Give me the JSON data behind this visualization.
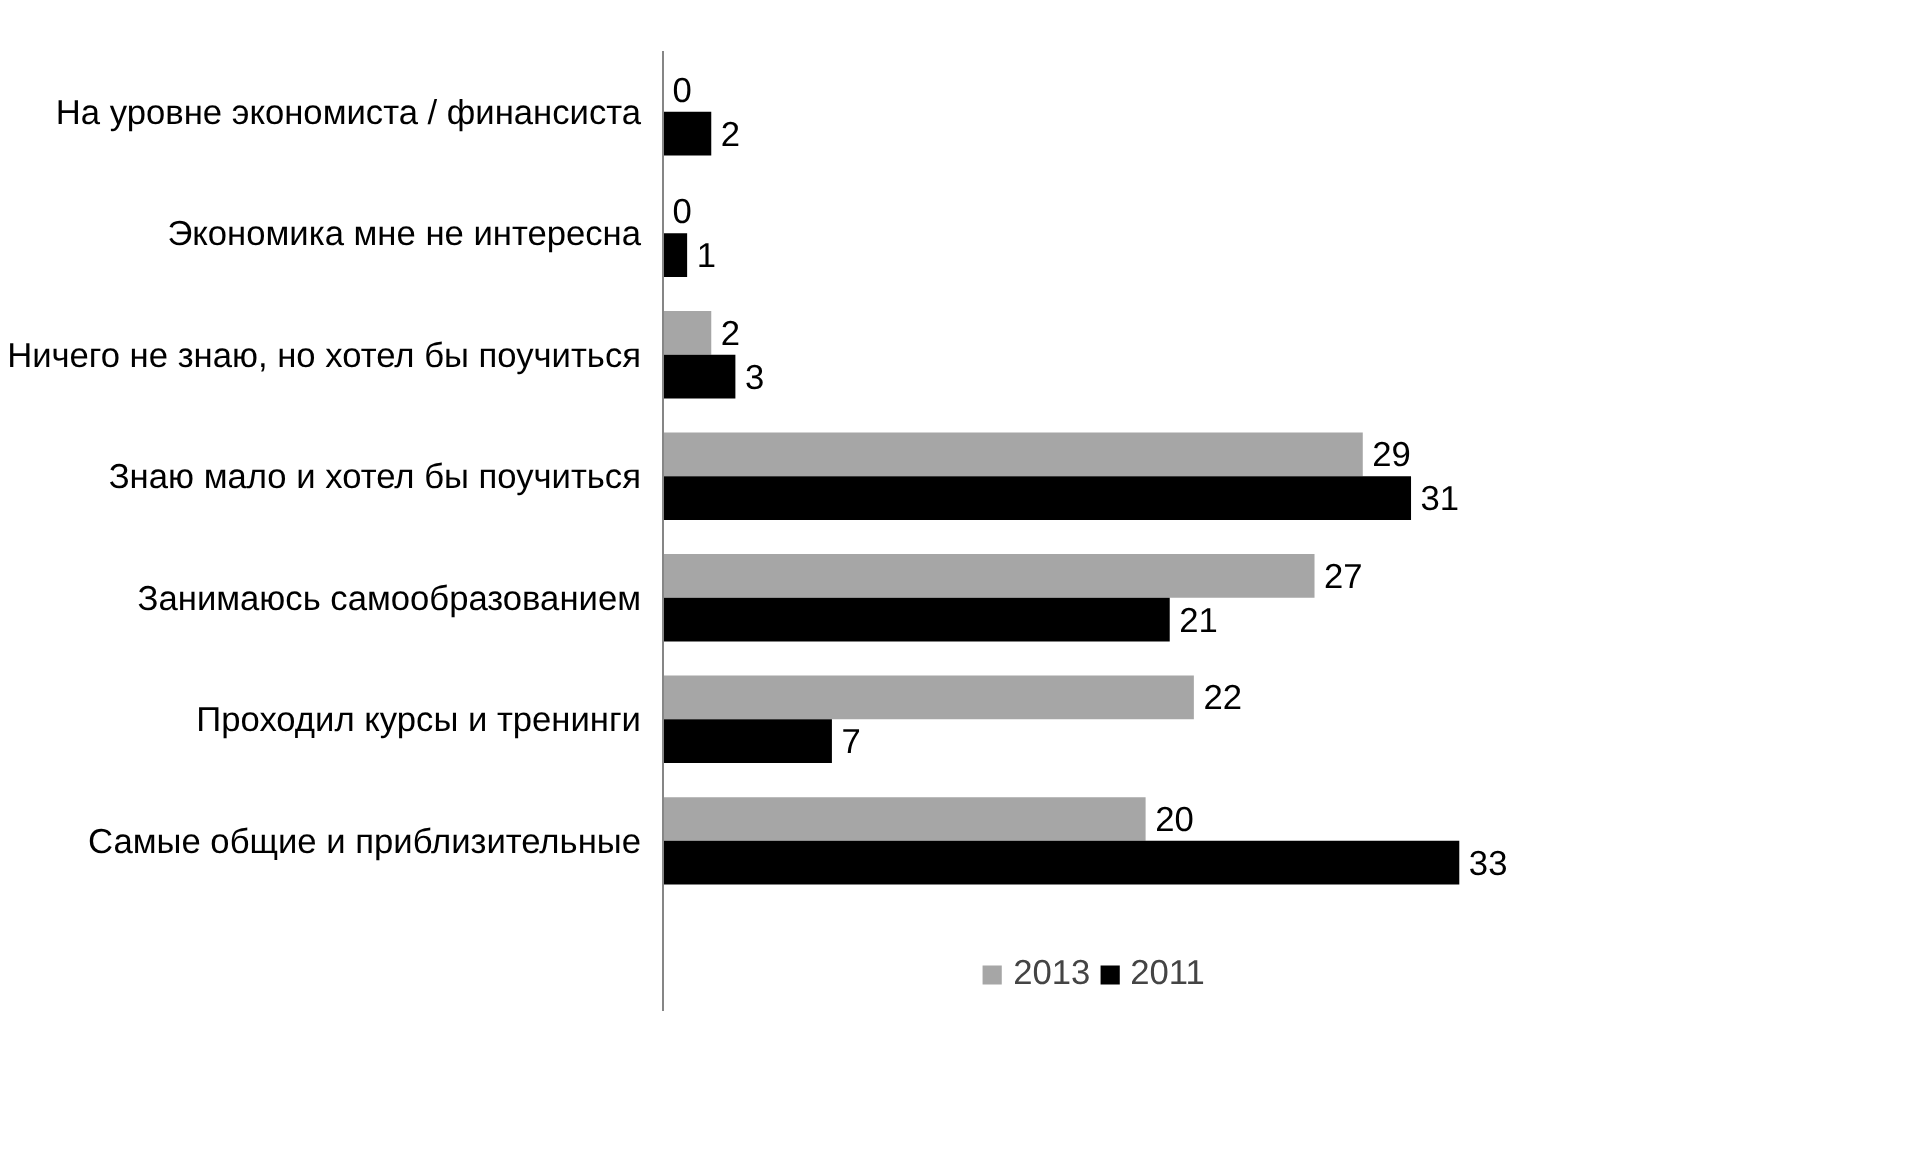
{
  "chart_data": {
    "type": "bar",
    "orientation": "horizontal",
    "categories": [
      "На уровне экономиста / финансиста",
      "Экономика мне не интересна",
      "Ничего не знаю, но хотел бы поучиться",
      "Знаю мало и хотел бы поучиться",
      "Занимаюсь самообразованием",
      "Проходил курсы и тренинги",
      "Самые общие и приблизительные"
    ],
    "series": [
      {
        "name": "2013",
        "color": "#a6a6a6",
        "values": [
          0,
          0,
          2,
          29,
          27,
          22,
          20
        ]
      },
      {
        "name": "2011",
        "color": "#000000",
        "values": [
          2,
          1,
          3,
          31,
          21,
          7,
          33
        ]
      }
    ],
    "data_labels": true,
    "legend": "bottom"
  }
}
